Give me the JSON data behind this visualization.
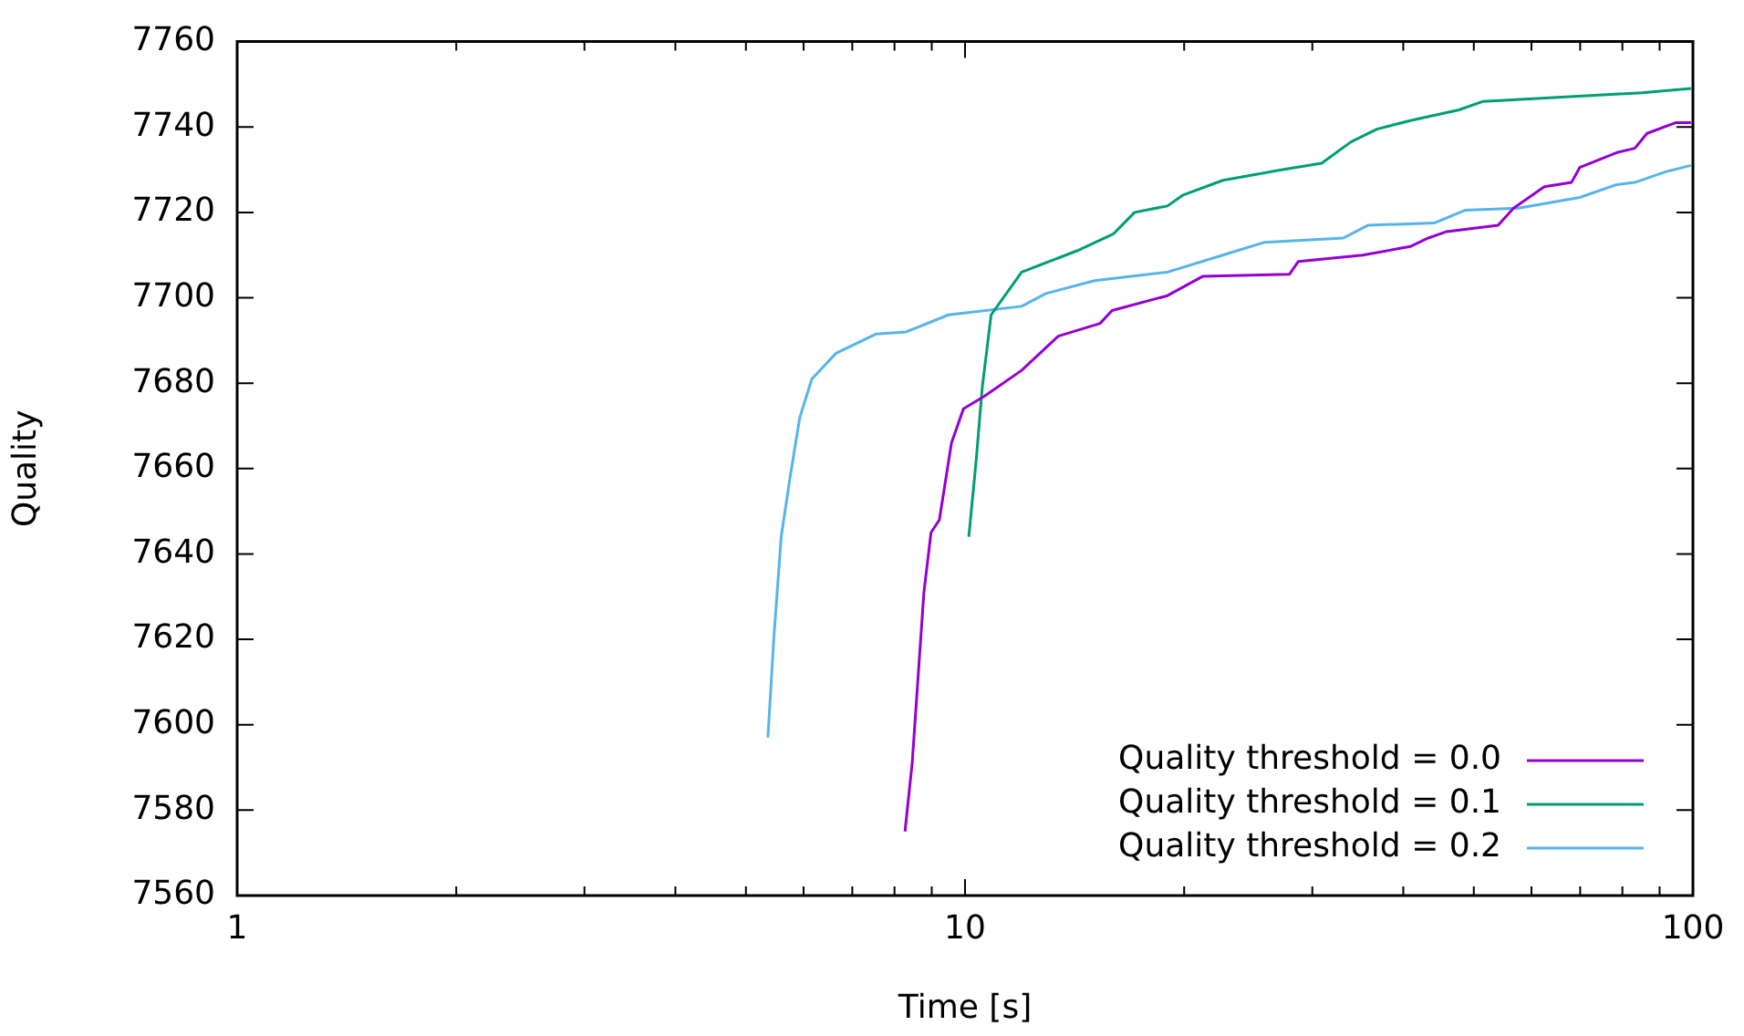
{
  "chart_data": {
    "type": "line",
    "xlabel": "Time [s]",
    "ylabel": "Quality",
    "log": "x",
    "xlim": [
      1,
      100
    ],
    "ylim": [
      7560,
      7760
    ],
    "xticks": [
      1,
      {
        "value": 2,
        "label": null
      },
      {
        "value": 3,
        "label": null
      },
      {
        "value": 4,
        "label": null
      },
      {
        "value": 5,
        "label": null
      },
      {
        "value": 6,
        "label": null
      },
      {
        "value": 7,
        "label": null
      },
      {
        "value": 8,
        "label": null
      },
      {
        "value": 9,
        "label": null
      },
      10,
      {
        "value": 20,
        "label": null
      },
      {
        "value": 30,
        "label": null
      },
      {
        "value": 40,
        "label": null
      },
      {
        "value": 50,
        "label": null
      },
      {
        "value": 60,
        "label": null
      },
      {
        "value": 70,
        "label": null
      },
      {
        "value": 80,
        "label": null
      },
      {
        "value": 90,
        "label": null
      },
      100
    ],
    "yticks": [
      7560,
      7580,
      7600,
      7620,
      7640,
      7660,
      7680,
      7700,
      7720,
      7740,
      7760
    ],
    "grid": false,
    "legend": "bottom right",
    "marker": "none",
    "line_style": "solid",
    "series": [
      {
        "name": "Quality threshold = 0.0",
        "color": "#9400d3",
        "x": [
          8.27,
          8.46,
          8.78,
          8.98,
          9.22,
          9.58,
          9.95,
          10.64,
          11.96,
          13.43,
          15.33,
          15.92,
          18.97,
          21.2,
          27.9,
          28.7,
          35.2,
          40.9,
          43.3,
          45.9,
          54.0,
          56.7,
          62.5,
          68.1,
          69.9,
          78.6,
          83.2,
          86.5,
          94.6,
          99.4
        ],
        "values": [
          7575,
          7591,
          7631,
          7645,
          7648,
          7666,
          7674,
          7677,
          7683,
          7691,
          7694,
          7697,
          7700.5,
          7705,
          7705.5,
          7708.5,
          7710,
          7712,
          7714,
          7715.5,
          7717,
          7721,
          7726,
          7727,
          7730.5,
          7734,
          7735,
          7738.5,
          7741,
          7741
        ]
      },
      {
        "name": "Quality threshold = 0.1",
        "color": "#009e73",
        "x": [
          10.12,
          10.36,
          10.56,
          10.86,
          11.73,
          11.96,
          14.25,
          16.0,
          17.1,
          18.97,
          19.9,
          22.6,
          27.3,
          30.9,
          33.9,
          36.8,
          40.9,
          47.7,
          51.5,
          85.1,
          99.4
        ],
        "values": [
          7644,
          7662,
          7679,
          7696,
          7704,
          7706,
          7711,
          7715,
          7720,
          7721.5,
          7724,
          7727.5,
          7730,
          7731.5,
          7736.5,
          7739.5,
          7741.5,
          7744,
          7746,
          7748,
          7749
        ]
      },
      {
        "name": "Quality threshold = 0.2",
        "color": "#56b4e9",
        "x": [
          5.36,
          5.46,
          5.59,
          5.75,
          5.93,
          6.16,
          6.65,
          7.54,
          8.3,
          9.49,
          11.96,
          12.91,
          15.06,
          18.97,
          22.6,
          25.8,
          33.1,
          35.8,
          44.1,
          48.6,
          57.6,
          69.9,
          78.6,
          83.2,
          91.7,
          99.4
        ],
        "values": [
          7597,
          7620,
          7644,
          7658,
          7672,
          7681,
          7687,
          7691.5,
          7692,
          7696,
          7698,
          7701,
          7704,
          7706,
          7710,
          7713,
          7714,
          7717,
          7717.5,
          7720.5,
          7721,
          7723.5,
          7726.5,
          7727,
          7729.5,
          7731
        ]
      }
    ]
  }
}
